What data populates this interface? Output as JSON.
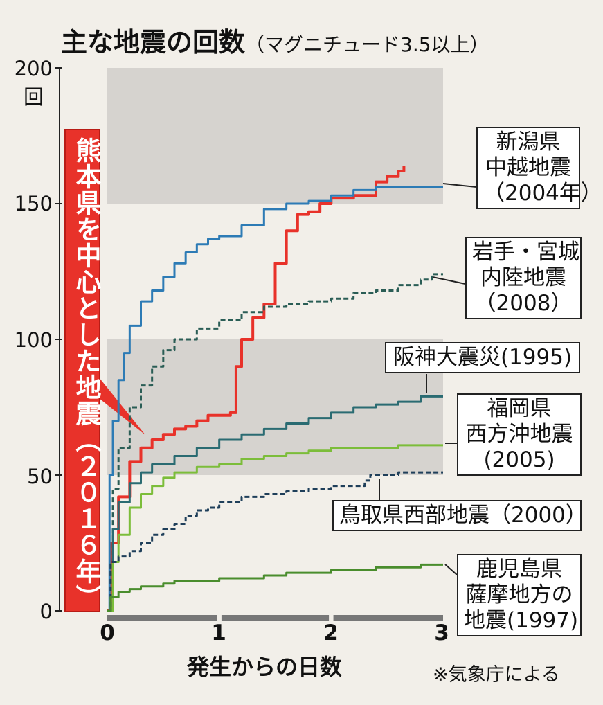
{
  "title": "主な地震の回数",
  "subtitle": "（マグニチュード3.5以上）",
  "source": "※気象庁による",
  "chart_data": {
    "type": "line",
    "xlabel": "発生からの日数",
    "y_unit": "回",
    "xlim": [
      0,
      3
    ],
    "ylim": [
      0,
      200
    ],
    "xticks": [
      "0",
      "1",
      "2",
      "3"
    ],
    "yticks": [
      "0",
      "50",
      "100",
      "150",
      "200"
    ],
    "series": [
      {
        "name": "熊本県を中心とした地震（2016年）",
        "color": "#e8322a",
        "style": "solid",
        "x": [
          0,
          0.03,
          0.1,
          0.2,
          0.3,
          0.4,
          0.5,
          0.6,
          0.7,
          0.8,
          0.9,
          1.0,
          1.1,
          1.15,
          1.2,
          1.3,
          1.4,
          1.5,
          1.6,
          1.7,
          1.8,
          1.9,
          2.0,
          2.2,
          2.4,
          2.5,
          2.6,
          2.65
        ],
        "y": [
          0,
          25,
          42,
          55,
          60,
          63,
          65,
          67,
          68,
          70,
          72,
          72,
          73,
          90,
          100,
          108,
          113,
          128,
          140,
          146,
          147,
          150,
          152,
          153,
          158,
          160,
          162,
          164
        ]
      },
      {
        "name": "新潟県中越地震（2004年）",
        "color": "#2d7bb5",
        "style": "solid",
        "x": [
          0,
          0.02,
          0.05,
          0.1,
          0.15,
          0.2,
          0.3,
          0.4,
          0.5,
          0.6,
          0.7,
          0.8,
          0.9,
          1.0,
          1.2,
          1.4,
          1.6,
          1.8,
          2.0,
          2.2,
          2.4,
          2.6,
          2.8,
          3.0
        ],
        "y": [
          0,
          50,
          70,
          85,
          95,
          105,
          114,
          118,
          123,
          128,
          132,
          135,
          137,
          138,
          142,
          148,
          150,
          151,
          153,
          155,
          156,
          156,
          156,
          156
        ]
      },
      {
        "name": "岩手・宮城内陸地震（2008）",
        "color": "#2a5d55",
        "style": "dashed",
        "x": [
          0,
          0.05,
          0.1,
          0.2,
          0.3,
          0.4,
          0.5,
          0.6,
          0.8,
          1.0,
          1.2,
          1.4,
          1.6,
          1.8,
          2.0,
          2.2,
          2.4,
          2.6,
          2.8,
          2.9,
          3.0
        ],
        "y": [
          0,
          45,
          60,
          75,
          83,
          90,
          96,
          100,
          104,
          107,
          110,
          112,
          113,
          114,
          115,
          117,
          118,
          120,
          122,
          124,
          124
        ]
      },
      {
        "name": "阪神大震災(1995)",
        "color": "#2a6b72",
        "style": "solid",
        "x": [
          0,
          0.05,
          0.1,
          0.2,
          0.3,
          0.4,
          0.6,
          0.8,
          1.0,
          1.2,
          1.4,
          1.6,
          1.8,
          2.0,
          2.2,
          2.4,
          2.6,
          2.8,
          3.0
        ],
        "y": [
          0,
          30,
          40,
          47,
          51,
          54,
          57,
          60,
          63,
          65,
          67,
          69,
          71,
          73,
          75,
          76,
          77,
          79,
          79
        ]
      },
      {
        "name": "福岡県西方沖地震（2005）",
        "color": "#7cbd3a",
        "style": "solid",
        "x": [
          0,
          0.05,
          0.1,
          0.2,
          0.3,
          0.4,
          0.5,
          0.6,
          0.8,
          1.0,
          1.2,
          1.4,
          1.6,
          1.8,
          2.0,
          2.2,
          2.4,
          2.6,
          2.8,
          3.0
        ],
        "y": [
          0,
          18,
          28,
          38,
          43,
          46,
          49,
          51,
          53,
          54,
          56,
          57,
          58,
          59,
          60,
          60,
          60,
          61,
          61,
          61
        ]
      },
      {
        "name": "鳥取県西部地震（2000）",
        "color": "#1f3f5a",
        "style": "dashed",
        "x": [
          0,
          0.03,
          0.1,
          0.2,
          0.3,
          0.4,
          0.5,
          0.6,
          0.7,
          0.8,
          0.9,
          1.0,
          1.2,
          1.4,
          1.6,
          1.8,
          2.0,
          2.2,
          2.3,
          2.35,
          2.5,
          2.6,
          2.7,
          2.8,
          3.0
        ],
        "y": [
          0,
          18,
          20,
          22,
          25,
          28,
          30,
          32,
          35,
          37,
          38,
          40,
          42,
          43,
          44,
          45,
          46,
          46,
          48,
          50,
          50,
          51,
          51,
          51,
          51
        ]
      },
      {
        "name": "鹿児島県薩摩地方の地震（1997）",
        "color": "#4a8d2d",
        "style": "solid",
        "x": [
          0,
          0.03,
          0.1,
          0.2,
          0.3,
          0.4,
          0.5,
          0.6,
          0.8,
          1.0,
          1.2,
          1.4,
          1.6,
          1.8,
          2.0,
          2.2,
          2.4,
          2.6,
          2.8,
          3.0
        ],
        "y": [
          0,
          5,
          7,
          8,
          9,
          9,
          10,
          11,
          11,
          12,
          12,
          13,
          14,
          14,
          15,
          15,
          16,
          16,
          17,
          17
        ]
      }
    ]
  },
  "labels": {
    "kumamoto": "熊本県を中心とした地震（２０１６年）",
    "niigata": [
      "新潟県",
      "中越地震",
      "（2004年）"
    ],
    "iwate": [
      "岩手・宮城",
      "内陸地震",
      "（2008）"
    ],
    "hanshin": "阪神大震災(1995)",
    "fukuoka": [
      "福岡県",
      "西方沖地震",
      "(2005)"
    ],
    "tottori": "鳥取県西部地震（2000）",
    "kagoshima": [
      "鹿児島県",
      "薩摩地方の",
      "地震(1997)"
    ]
  }
}
